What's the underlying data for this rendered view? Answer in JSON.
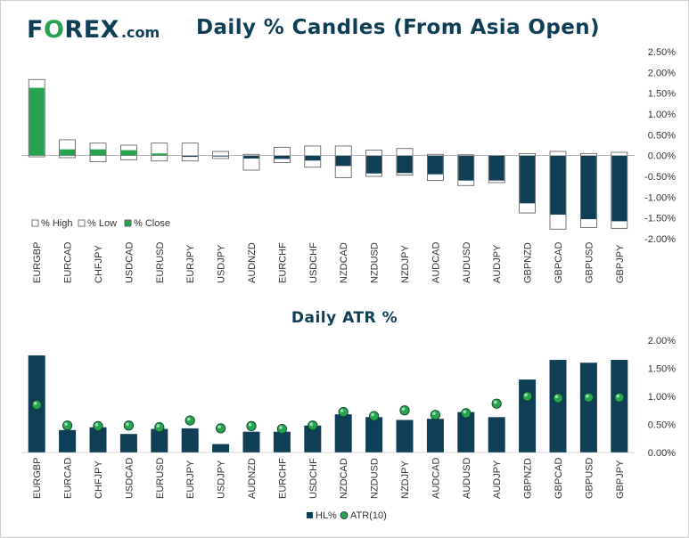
{
  "brand": {
    "logo_part1": "F",
    "logo_o": "O",
    "logo_part2": "REX",
    "logo_domain": ".com",
    "color_dark": "#0e3f57",
    "color_green": "#26a34f"
  },
  "chart_data": [
    {
      "type": "bar",
      "subtype": "candlestick-range",
      "title": "Daily % Candles (From Asia Open)",
      "categories": [
        "EURGBP",
        "EURCAD",
        "CHFJPY",
        "USDCAD",
        "EURUSD",
        "EURJPY",
        "USDJPY",
        "AUDNZD",
        "EURCHF",
        "USDCHF",
        "NZDCAD",
        "NZDUSD",
        "NZDJPY",
        "AUDCAD",
        "AUDUSD",
        "AUDJPY",
        "GBPNZD",
        "GBPCAD",
        "GBPUSD",
        "GBPJPY"
      ],
      "series": [
        {
          "name": "% High",
          "values": [
            1.83,
            0.38,
            0.3,
            0.25,
            0.3,
            0.3,
            0.1,
            0.03,
            0.2,
            0.23,
            0.23,
            0.13,
            0.17,
            0.03,
            0.02,
            0.0,
            0.05,
            0.1,
            0.05,
            0.08
          ]
        },
        {
          "name": "% Low",
          "values": [
            -0.03,
            -0.05,
            -0.15,
            -0.1,
            -0.13,
            -0.13,
            -0.07,
            -0.35,
            -0.17,
            -0.28,
            -0.53,
            -0.5,
            -0.47,
            -0.6,
            -0.72,
            -0.65,
            -1.38,
            -1.77,
            -1.73,
            -1.75
          ]
        },
        {
          "name": "% Close",
          "values": [
            1.63,
            0.15,
            0.15,
            0.13,
            0.05,
            -0.03,
            -0.02,
            -0.07,
            -0.08,
            -0.12,
            -0.25,
            -0.43,
            -0.42,
            -0.45,
            -0.6,
            -0.6,
            -1.15,
            -1.42,
            -1.53,
            -1.58
          ]
        }
      ],
      "ylim": [
        -2.0,
        2.5
      ],
      "yticks": [
        "2.50%",
        "2.00%",
        "1.50%",
        "1.00%",
        "0.50%",
        "0.00%",
        "-0.50%",
        "-1.00%",
        "-1.50%",
        "-2.00%"
      ],
      "legend": [
        "% High",
        "% Low",
        "% Close"
      ],
      "legend_position": "bottom-left",
      "grid": false
    },
    {
      "type": "bar",
      "title": "Daily ATR %",
      "categories": [
        "EURGBP",
        "EURCAD",
        "CHFJPY",
        "USDCAD",
        "EURUSD",
        "EURJPY",
        "USDJPY",
        "AUDNZD",
        "EURCHF",
        "USDCHF",
        "NZDCAD",
        "NZDUSD",
        "NZDJPY",
        "AUDCAD",
        "AUDUSD",
        "AUDJPY",
        "GBPNZD",
        "GBPCAD",
        "GBPUSD",
        "GBPJPY"
      ],
      "series": [
        {
          "name": "HL%",
          "type": "bar",
          "values": [
            1.73,
            0.4,
            0.45,
            0.33,
            0.42,
            0.43,
            0.15,
            0.37,
            0.37,
            0.48,
            0.68,
            0.63,
            0.58,
            0.6,
            0.72,
            0.63,
            1.3,
            1.65,
            1.6,
            1.65
          ]
        },
        {
          "name": "ATR(10)",
          "type": "scatter",
          "values": [
            0.85,
            0.48,
            0.47,
            0.48,
            0.45,
            0.57,
            0.43,
            0.47,
            0.42,
            0.48,
            0.72,
            0.65,
            0.75,
            0.67,
            0.7,
            0.87,
            1.0,
            0.97,
            0.98,
            0.98
          ]
        }
      ],
      "ylim": [
        0.0,
        2.0
      ],
      "yticks": [
        "2.00%",
        "1.50%",
        "1.00%",
        "0.50%",
        "0.00%"
      ],
      "legend": [
        "HL%",
        "ATR(10)"
      ],
      "legend_position": "bottom-center",
      "grid": false
    }
  ]
}
